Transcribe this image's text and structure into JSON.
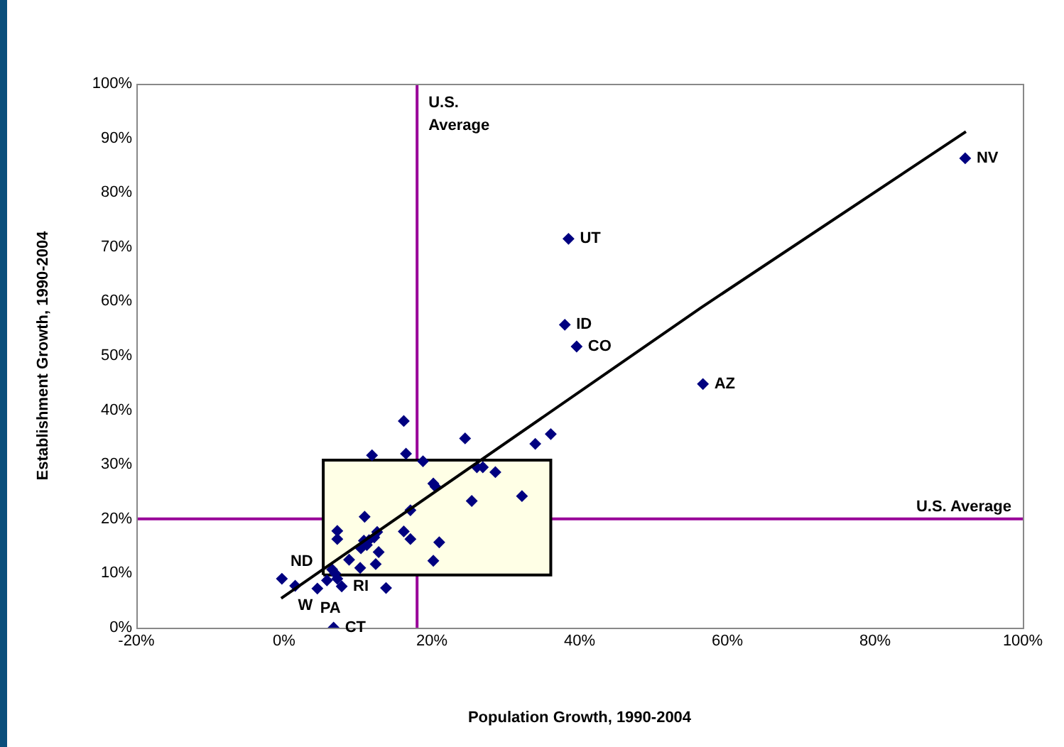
{
  "chart_data": {
    "type": "scatter",
    "xlabel": "Population Growth, 1990-2004",
    "ylabel": "Establishment Growth, 1990-2004",
    "xlim": [
      -20,
      100
    ],
    "xticks": [
      {
        "value": -20,
        "label": "-20%"
      },
      {
        "value": 0,
        "label": "0%"
      },
      {
        "value": 20,
        "label": "20%"
      },
      {
        "value": 40,
        "label": "40%"
      },
      {
        "value": 60,
        "label": "60%"
      },
      {
        "value": 80,
        "label": "80%"
      },
      {
        "value": 100,
        "label": "100%"
      }
    ],
    "ylim": [
      0,
      100
    ],
    "yticks": [
      {
        "value": 0,
        "label": "0%"
      },
      {
        "value": 10,
        "label": "10%"
      },
      {
        "value": 20,
        "label": "20%"
      },
      {
        "value": 30,
        "label": "30%"
      },
      {
        "value": 40,
        "label": "40%"
      },
      {
        "value": 50,
        "label": "50%"
      },
      {
        "value": 60,
        "label": "60%"
      },
      {
        "value": 70,
        "label": "70%"
      },
      {
        "value": 80,
        "label": "80%"
      },
      {
        "value": 90,
        "label": "90%"
      },
      {
        "value": 100,
        "label": "100%"
      }
    ],
    "grid": false,
    "legend": false,
    "marker": "diamond",
    "series": [
      {
        "type": "area",
        "marker": "none",
        "color": "#000000",
        "x": [
          5.3,
          36.1,
          36.1,
          5.3,
          5.3
        ],
        "values": [
          9.7,
          9.7,
          30.8,
          30.8,
          9.7
        ]
      },
      {
        "color": "#000080",
        "x": [
          92.2,
          38.5,
          38,
          39.6,
          56.7,
          16.2,
          16.5,
          18.8,
          24.5,
          34,
          36.1,
          11.9,
          26.1,
          26.9,
          28.6,
          20.2,
          20.5,
          25.4,
          32.2,
          17.1,
          10.9,
          7.2,
          7.2,
          12.6,
          12.2,
          11.5,
          10.8,
          11.2,
          10.4,
          12.8,
          16.2,
          17.1,
          21,
          20.2,
          8.8,
          12.4,
          10.3,
          6.5,
          6.9,
          7.2,
          5.8,
          7.8,
          4.5,
          13.8,
          1.5,
          -0.3,
          6.7
        ],
        "values": [
          86.3,
          71.5,
          55.7,
          51.7,
          44.8,
          38,
          32,
          30.6,
          34.8,
          33.8,
          35.6,
          31.7,
          29.5,
          29.5,
          28.6,
          26.5,
          25.9,
          23.3,
          24.2,
          21.6,
          20.4,
          17.8,
          16.3,
          17.6,
          16.6,
          16.1,
          16,
          15.2,
          14.6,
          13.9,
          17.7,
          16.3,
          15.7,
          12.3,
          12.5,
          11.7,
          11,
          10.7,
          10,
          9,
          8.7,
          7.6,
          7.2,
          7.3,
          7.7,
          9,
          0
        ]
      },
      {
        "type": "line",
        "marker": "none",
        "color": "#000000",
        "x": [
          -0.4,
          56.4,
          92.3
        ],
        "values": [
          5.4,
          58.8,
          91.2
        ]
      }
    ],
    "ref_lines": [
      {
        "axis": "x",
        "value": 18,
        "label": "U.S. Average",
        "color": "#990099"
      },
      {
        "axis": "y",
        "value": 20,
        "label": "U.S. Average",
        "color": "#990099"
      }
    ],
    "annotations": [
      {
        "text": "NV",
        "x": 92.2,
        "y": 86.3
      },
      {
        "text": "UT",
        "x": 38.5,
        "y": 71.5
      },
      {
        "text": "ID",
        "x": 38,
        "y": 55.7
      },
      {
        "text": "CO",
        "x": 39.6,
        "y": 51.7
      },
      {
        "text": "AZ",
        "x": 56.7,
        "y": 44.8
      },
      {
        "text": "ND",
        "x": -0.3,
        "y": 9
      },
      {
        "text": "W",
        "x": 1.5,
        "y": 7.7
      },
      {
        "text": "PA",
        "x": 4.5,
        "y": 7.2
      },
      {
        "text": "RI",
        "x": 7.8,
        "y": 7.6
      },
      {
        "text": "CT",
        "x": 6.7,
        "y": 0
      }
    ]
  }
}
